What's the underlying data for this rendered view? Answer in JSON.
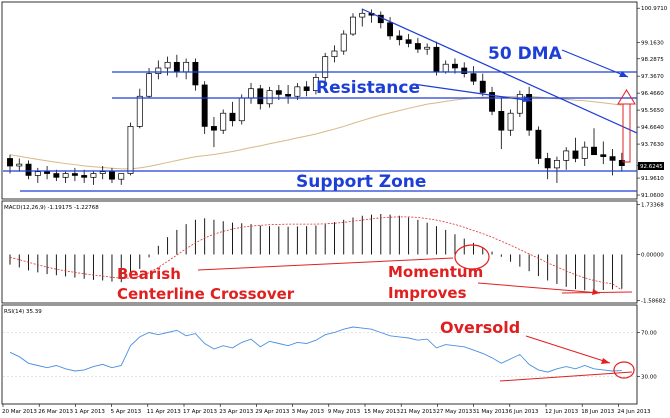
{
  "chart_data": {
    "type": "candlestick",
    "x_dates": [
      "20 Mar 2013",
      "26 Mar 2013",
      "1 Apr 2013",
      "5 Apr 2013",
      "11 Apr 2013",
      "17 Apr 2013",
      "23 Apr 2013",
      "29 Apr 2013",
      "3 May 2013",
      "9 May 2013",
      "15 May 2013",
      "21 May 2013",
      "27 May 2013",
      "31 May 2013",
      "6 Jun 2013",
      "12 Jun 2013",
      "18 Jun 2013",
      "24 Jun 2013"
    ],
    "price_axis": {
      "ticks": [
        "100.9710",
        "99.1630",
        "98.2875",
        "97.3670",
        "96.4660",
        "95.5650",
        "94.6640",
        "93.7630",
        "92.6245",
        "91.9610",
        "91.0600"
      ],
      "current": "92.6245",
      "range": [
        90.85,
        101.3
      ]
    },
    "candles": [
      {
        "o": 93.0,
        "h": 93.2,
        "l": 92.2,
        "c": 92.6
      },
      {
        "o": 92.6,
        "h": 93.0,
        "l": 92.3,
        "c": 92.7
      },
      {
        "o": 92.7,
        "h": 92.9,
        "l": 91.9,
        "c": 92.1
      },
      {
        "o": 92.1,
        "h": 92.5,
        "l": 91.7,
        "c": 92.3
      },
      {
        "o": 92.3,
        "h": 92.6,
        "l": 91.9,
        "c": 92.2
      },
      {
        "o": 92.2,
        "h": 92.4,
        "l": 91.8,
        "c": 92.0
      },
      {
        "o": 92.0,
        "h": 92.3,
        "l": 91.7,
        "c": 92.2
      },
      {
        "o": 92.2,
        "h": 92.5,
        "l": 91.8,
        "c": 92.1
      },
      {
        "o": 92.1,
        "h": 92.4,
        "l": 91.7,
        "c": 92.0
      },
      {
        "o": 92.0,
        "h": 92.3,
        "l": 91.6,
        "c": 92.2
      },
      {
        "o": 92.2,
        "h": 92.6,
        "l": 91.9,
        "c": 92.3
      },
      {
        "o": 92.3,
        "h": 92.5,
        "l": 91.7,
        "c": 91.9
      },
      {
        "o": 91.9,
        "h": 92.2,
        "l": 91.6,
        "c": 92.2
      },
      {
        "o": 92.2,
        "h": 94.9,
        "l": 92.1,
        "c": 94.7
      },
      {
        "o": 94.7,
        "h": 96.7,
        "l": 94.6,
        "c": 96.3
      },
      {
        "o": 96.3,
        "h": 97.8,
        "l": 96.2,
        "c": 97.5
      },
      {
        "o": 97.5,
        "h": 98.2,
        "l": 97.2,
        "c": 97.8
      },
      {
        "o": 97.8,
        "h": 98.4,
        "l": 97.4,
        "c": 98.1
      },
      {
        "o": 98.1,
        "h": 98.5,
        "l": 97.3,
        "c": 97.6
      },
      {
        "o": 97.6,
        "h": 98.3,
        "l": 97.2,
        "c": 98.1
      },
      {
        "o": 98.1,
        "h": 98.3,
        "l": 96.6,
        "c": 96.9
      },
      {
        "o": 96.9,
        "h": 97.1,
        "l": 94.3,
        "c": 94.7
      },
      {
        "o": 94.7,
        "h": 95.2,
        "l": 93.6,
        "c": 94.5
      },
      {
        "o": 94.5,
        "h": 95.6,
        "l": 94.3,
        "c": 95.4
      },
      {
        "o": 95.4,
        "h": 96.0,
        "l": 94.7,
        "c": 95.0
      },
      {
        "o": 95.0,
        "h": 96.4,
        "l": 94.8,
        "c": 96.2
      },
      {
        "o": 96.2,
        "h": 97.0,
        "l": 95.9,
        "c": 96.7
      },
      {
        "o": 96.7,
        "h": 96.9,
        "l": 95.6,
        "c": 95.9
      },
      {
        "o": 95.9,
        "h": 96.8,
        "l": 95.7,
        "c": 96.6
      },
      {
        "o": 96.6,
        "h": 96.9,
        "l": 96.1,
        "c": 96.4
      },
      {
        "o": 96.4,
        "h": 96.9,
        "l": 95.9,
        "c": 96.3
      },
      {
        "o": 96.3,
        "h": 97.0,
        "l": 96.1,
        "c": 96.8
      },
      {
        "o": 96.8,
        "h": 97.1,
        "l": 96.3,
        "c": 96.6
      },
      {
        "o": 96.6,
        "h": 97.5,
        "l": 96.4,
        "c": 97.3
      },
      {
        "o": 97.3,
        "h": 98.6,
        "l": 97.1,
        "c": 98.4
      },
      {
        "o": 98.4,
        "h": 99.0,
        "l": 98.1,
        "c": 98.7
      },
      {
        "o": 98.7,
        "h": 99.8,
        "l": 98.5,
        "c": 99.6
      },
      {
        "o": 99.6,
        "h": 100.7,
        "l": 99.5,
        "c": 100.5
      },
      {
        "o": 100.5,
        "h": 100.95,
        "l": 100.0,
        "c": 100.7
      },
      {
        "o": 100.7,
        "h": 100.9,
        "l": 100.2,
        "c": 100.6
      },
      {
        "o": 100.6,
        "h": 100.8,
        "l": 99.9,
        "c": 100.2
      },
      {
        "o": 100.2,
        "h": 100.5,
        "l": 99.3,
        "c": 99.5
      },
      {
        "o": 99.5,
        "h": 99.8,
        "l": 99.0,
        "c": 99.3
      },
      {
        "o": 99.3,
        "h": 99.6,
        "l": 98.9,
        "c": 99.1
      },
      {
        "o": 99.1,
        "h": 99.4,
        "l": 98.6,
        "c": 98.8
      },
      {
        "o": 98.8,
        "h": 99.1,
        "l": 98.5,
        "c": 98.9
      },
      {
        "o": 98.9,
        "h": 99.2,
        "l": 97.4,
        "c": 97.6
      },
      {
        "o": 97.6,
        "h": 98.2,
        "l": 97.5,
        "c": 98.0
      },
      {
        "o": 98.0,
        "h": 98.3,
        "l": 97.5,
        "c": 97.8
      },
      {
        "o": 97.8,
        "h": 98.1,
        "l": 97.3,
        "c": 97.5
      },
      {
        "o": 97.5,
        "h": 97.9,
        "l": 96.9,
        "c": 97.1
      },
      {
        "o": 97.1,
        "h": 97.5,
        "l": 96.3,
        "c": 96.5
      },
      {
        "o": 96.5,
        "h": 96.8,
        "l": 95.3,
        "c": 95.5
      },
      {
        "o": 95.5,
        "h": 96.2,
        "l": 93.5,
        "c": 94.5
      },
      {
        "o": 94.5,
        "h": 95.6,
        "l": 94.2,
        "c": 95.4
      },
      {
        "o": 95.4,
        "h": 96.6,
        "l": 95.2,
        "c": 96.4
      },
      {
        "o": 96.4,
        "h": 96.8,
        "l": 94.2,
        "c": 94.5
      },
      {
        "o": 94.5,
        "h": 94.7,
        "l": 92.7,
        "c": 93.0
      },
      {
        "o": 93.0,
        "h": 93.3,
        "l": 91.9,
        "c": 92.5
      },
      {
        "o": 92.5,
        "h": 93.1,
        "l": 91.7,
        "c": 92.9
      },
      {
        "o": 92.9,
        "h": 93.6,
        "l": 92.4,
        "c": 93.4
      },
      {
        "o": 93.4,
        "h": 94.1,
        "l": 92.8,
        "c": 93.0
      },
      {
        "o": 93.0,
        "h": 93.9,
        "l": 92.6,
        "c": 93.6
      },
      {
        "o": 93.6,
        "h": 94.6,
        "l": 93.2,
        "c": 93.2
      },
      {
        "o": 93.2,
        "h": 93.9,
        "l": 92.7,
        "c": 93.1
      },
      {
        "o": 93.1,
        "h": 93.5,
        "l": 92.1,
        "c": 92.9
      },
      {
        "o": 92.9,
        "h": 93.3,
        "l": 92.3,
        "c": 92.62
      }
    ],
    "ma50": [
      93.2,
      93.12,
      93.03,
      92.95,
      92.87,
      92.8,
      92.73,
      92.67,
      92.61,
      92.56,
      92.52,
      92.48,
      92.45,
      92.45,
      92.5,
      92.58,
      92.68,
      92.79,
      92.89,
      93.0,
      93.09,
      93.15,
      93.21,
      93.29,
      93.37,
      93.47,
      93.58,
      93.67,
      93.78,
      93.88,
      93.98,
      94.09,
      94.19,
      94.3,
      94.43,
      94.56,
      94.7,
      94.86,
      95.01,
      95.16,
      95.3,
      95.42,
      95.54,
      95.66,
      95.77,
      95.88,
      95.95,
      96.03,
      96.1,
      96.16,
      96.21,
      96.25,
      96.28,
      96.28,
      96.29,
      96.31,
      96.3,
      96.26,
      96.21,
      96.17,
      96.14,
      96.09,
      96.06,
      96.01,
      95.95,
      95.89,
      95.83
    ],
    "macd": {
      "label": "MACD(12,26,9) -1.19175 -1.22768",
      "ticks": [
        "1.73368",
        "0.00000",
        "-1.58682"
      ],
      "range": [
        -1.68,
        1.85
      ],
      "histogram": [
        -0.35,
        -0.45,
        -0.55,
        -0.62,
        -0.68,
        -0.72,
        -0.76,
        -0.8,
        -0.84,
        -0.88,
        -0.9,
        -0.94,
        -0.96,
        -0.8,
        -0.5,
        -0.1,
        0.3,
        0.6,
        0.85,
        1.05,
        1.2,
        1.25,
        1.2,
        1.15,
        1.1,
        1.08,
        1.05,
        1.0,
        0.98,
        0.97,
        0.96,
        0.97,
        0.98,
        1.0,
        1.05,
        1.12,
        1.2,
        1.28,
        1.34,
        1.38,
        1.4,
        1.38,
        1.34,
        1.28,
        1.2,
        1.1,
        0.98,
        0.85,
        0.7,
        0.55,
        0.4,
        0.25,
        0.1,
        -0.08,
        -0.25,
        -0.42,
        -0.58,
        -0.75,
        -0.9,
        -1.02,
        -1.12,
        -1.2,
        -1.24,
        -1.25,
        -1.23,
        -1.21,
        -1.19
      ],
      "signal": [
        -0.1,
        -0.18,
        -0.27,
        -0.36,
        -0.44,
        -0.51,
        -0.57,
        -0.62,
        -0.67,
        -0.71,
        -0.75,
        -0.79,
        -0.82,
        -0.82,
        -0.76,
        -0.63,
        -0.45,
        -0.24,
        -0.02,
        0.2,
        0.4,
        0.57,
        0.7,
        0.8,
        0.88,
        0.94,
        0.98,
        1.01,
        1.03,
        1.04,
        1.05,
        1.05,
        1.05,
        1.05,
        1.06,
        1.08,
        1.11,
        1.15,
        1.19,
        1.23,
        1.27,
        1.29,
        1.3,
        1.3,
        1.28,
        1.24,
        1.19,
        1.12,
        1.04,
        0.94,
        0.83,
        0.72,
        0.6,
        0.46,
        0.32,
        0.17,
        0.02,
        -0.13,
        -0.29,
        -0.43,
        -0.57,
        -0.7,
        -0.81,
        -0.9,
        -0.97,
        -1.02,
        -1.23
      ]
    },
    "rsi": {
      "label": "RSI(14) 35.39",
      "ticks": [
        "70.00",
        "30.00"
      ],
      "range": [
        5,
        95
      ],
      "values": [
        52,
        48,
        42,
        40,
        38,
        40,
        37,
        35,
        36,
        39,
        41,
        38,
        40,
        58,
        66,
        70,
        68,
        70,
        72,
        67,
        69,
        60,
        55,
        58,
        56,
        61,
        64,
        57,
        62,
        60,
        58,
        61,
        60,
        63,
        68,
        70,
        73,
        75,
        74,
        73,
        70,
        67,
        66,
        65,
        63,
        64,
        56,
        59,
        58,
        57,
        54,
        51,
        47,
        42,
        46,
        50,
        41,
        36,
        34,
        37,
        39,
        37,
        40,
        37,
        36,
        35,
        35.39
      ]
    },
    "annotations": {
      "dma": "50 DMA",
      "resistance": "Resistance",
      "support": "Support Zone",
      "bearish_line1": "Bearish",
      "bearish_line2": "Centerline Crossover",
      "momentum_line1": "Momentum",
      "momentum_line2": "Improves",
      "oversold": "Oversold"
    },
    "colors": {
      "ma": "#d7b988",
      "signal": "#e03030",
      "rsi": "#4a90e0",
      "blue_annotation": "#1e3fd6",
      "red_annotation": "#e02020"
    }
  }
}
